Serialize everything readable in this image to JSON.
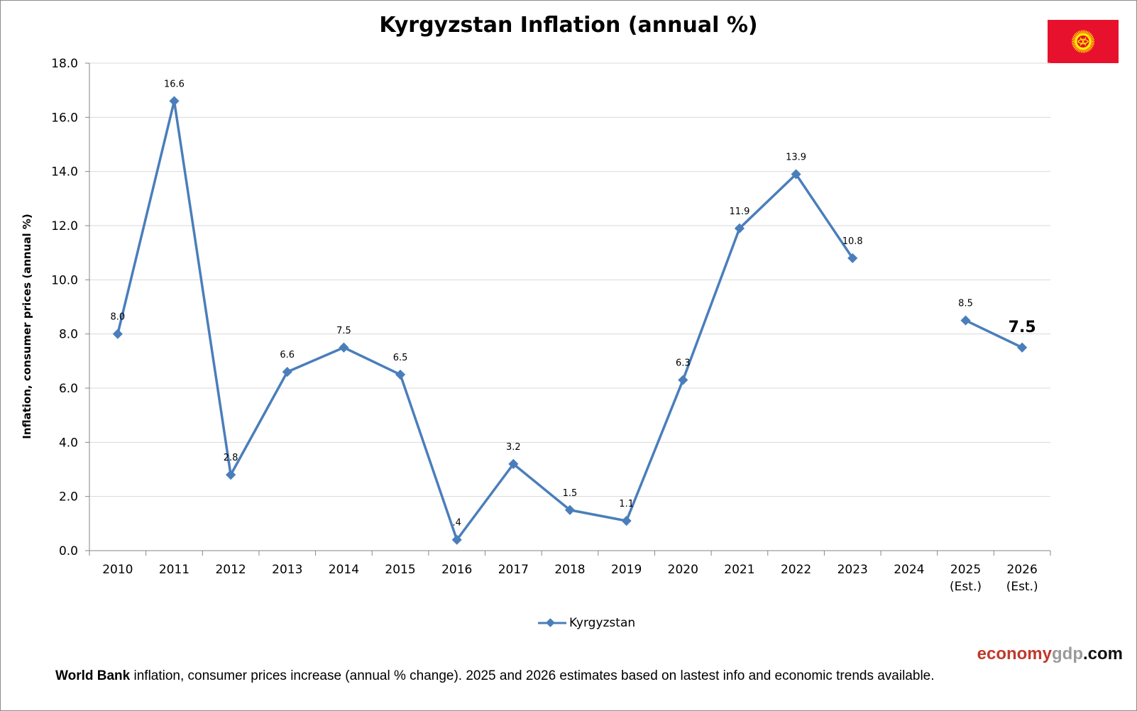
{
  "title": "Kyrgyzstan Inflation (annual %)",
  "footnote": {
    "bold": "World Bank",
    "text": " inflation, consumer prices increase (annual % change).  2025 and 2026 estimates based on lastest info and economic trends available."
  },
  "brand": {
    "part1": "economy",
    "part2": "gdp",
    "part3": ".com"
  },
  "flag": {
    "field_color": "#e8112d",
    "emblem_color": "#ffef00",
    "icon": "kyrgyzstan-flag-icon"
  },
  "chart_data": {
    "type": "line",
    "title": "Kyrgyzstan Inflation (annual %)",
    "ylabel": "Inflation, consumer prices (annual %)",
    "xlabel": "",
    "ylim": [
      0,
      18
    ],
    "yticks": [
      "0.0",
      "2.0",
      "4.0",
      "6.0",
      "8.0",
      "10.0",
      "12.0",
      "14.0",
      "16.0",
      "18.0"
    ],
    "grid": true,
    "legend": "bottom",
    "categories": [
      [
        "2010"
      ],
      [
        "2011"
      ],
      [
        "2012"
      ],
      [
        "2013"
      ],
      [
        "2014"
      ],
      [
        "2015"
      ],
      [
        "2016"
      ],
      [
        "2017"
      ],
      [
        "2018"
      ],
      [
        "2019"
      ],
      [
        "2020"
      ],
      [
        "2021"
      ],
      [
        "2022"
      ],
      [
        "2023"
      ],
      [
        "2024"
      ],
      [
        "2025",
        "(Est.)"
      ],
      [
        "2026",
        "(Est.)"
      ]
    ],
    "series": [
      {
        "name": "Kyrgyzstan",
        "color": "#4a7ebb",
        "values": [
          8.0,
          16.6,
          2.8,
          6.6,
          7.5,
          6.5,
          0.4,
          3.2,
          1.5,
          1.1,
          6.3,
          11.9,
          13.9,
          10.8,
          null,
          8.5,
          7.5
        ],
        "labels": [
          "8.0",
          "16.6",
          "2.8",
          "6.6",
          "7.5",
          "6.5",
          ".4",
          "3.2",
          "1.5",
          "1.1",
          "6.3",
          "11.9",
          "13.9",
          "10.8",
          "",
          "8.5",
          "7.5"
        ]
      }
    ]
  }
}
